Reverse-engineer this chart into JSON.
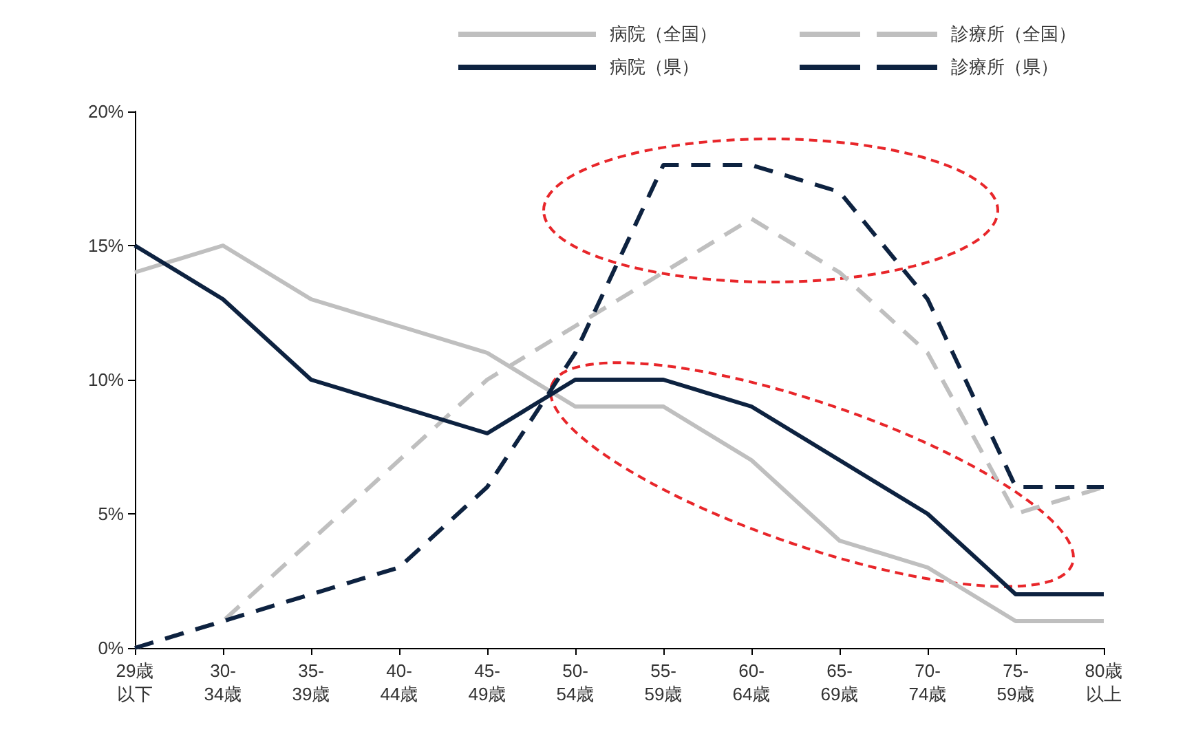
{
  "chart_data": {
    "type": "line",
    "categories": [
      "29歳以下",
      "30-\n34歳",
      "35-\n39歳",
      "40-\n44歳",
      "45-\n49歳",
      "50-\n54歳",
      "55-\n59歳",
      "60-\n64歳",
      "65-\n69歳",
      "70-\n74歳",
      "75-\n59歳",
      "80歳以上"
    ],
    "series": [
      {
        "name": "病院（全国）",
        "color": "#bfbfbf",
        "line_style": "solid",
        "values": [
          14,
          15,
          13,
          12,
          11,
          9,
          9,
          7,
          4,
          3,
          1,
          1
        ]
      },
      {
        "name": "診療所（全国）",
        "color": "#bfbfbf",
        "line_style": "dashed",
        "values": [
          0,
          1,
          4,
          7,
          10,
          12,
          14,
          16,
          14,
          11,
          5,
          6
        ]
      },
      {
        "name": "病院（県）",
        "color": "#0d2240",
        "line_style": "solid",
        "values": [
          15,
          13,
          10,
          9,
          8,
          10,
          10,
          9,
          7,
          5,
          2,
          2
        ]
      },
      {
        "name": "診療所（県）",
        "color": "#0d2240",
        "line_style": "dashed",
        "values": [
          0,
          1,
          2,
          3,
          6,
          11,
          18,
          18,
          17,
          13,
          6,
          6
        ]
      }
    ],
    "ylim": [
      0,
      20
    ],
    "yticks": [
      {
        "value": 0,
        "label": "0%"
      },
      {
        "value": 5,
        "label": "5%"
      },
      {
        "value": 10,
        "label": "10%"
      },
      {
        "value": 15,
        "label": "15%"
      },
      {
        "value": 20,
        "label": "20%"
      }
    ],
    "grid": false,
    "legend": "top right",
    "marker": "none"
  }
}
